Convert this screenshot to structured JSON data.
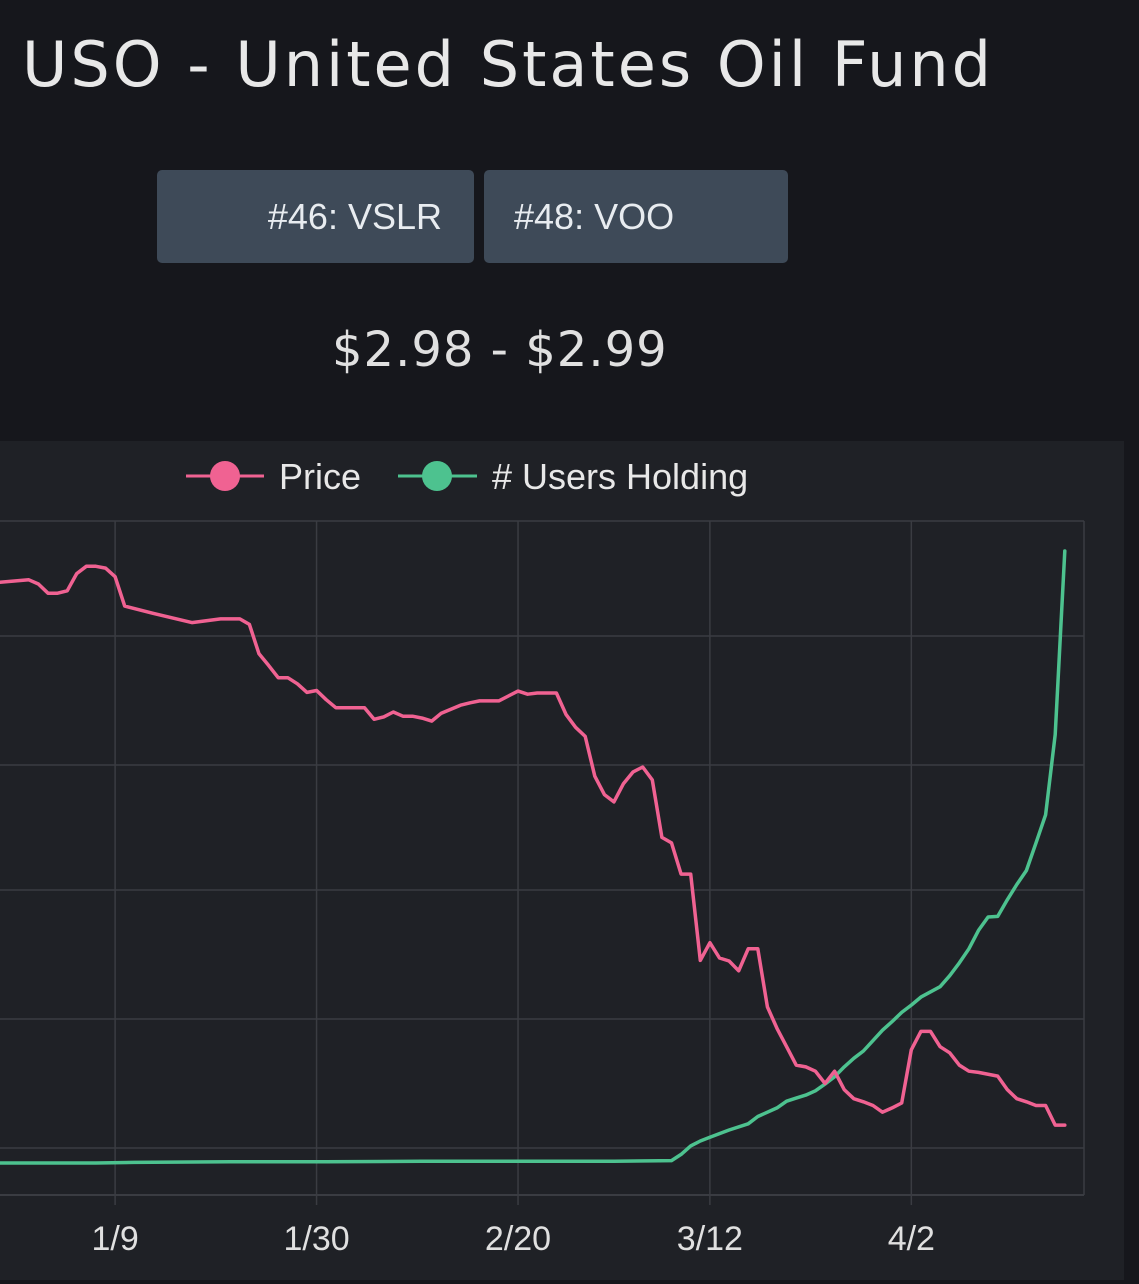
{
  "header": {
    "title": "USO - United States Oil Fund"
  },
  "nav": {
    "prev_label": "#46: VSLR",
    "next_label": "#48: VOO"
  },
  "price_range": "$2.98 - $2.99",
  "colors": {
    "background": "#16171c",
    "chart_background": "#1f2126",
    "grid": "#3a3c42",
    "price_series": "#f06292",
    "users_series": "#4dc28f",
    "button": "#3e4a58"
  },
  "chart_data": {
    "type": "line",
    "x_ticks": [
      "1/9",
      "1/30",
      "2/20",
      "3/12",
      "4/2"
    ],
    "x_tick_days": [
      8,
      29,
      50,
      70,
      91
    ],
    "xlim": [
      -4,
      109
    ],
    "grid": true,
    "legend_position": "top-center",
    "series": [
      {
        "name": "Price",
        "axis": "left",
        "ylim": [
          0,
          1
        ],
        "points": [
          [
            -4,
            0.949
          ],
          [
            -1,
            0.953
          ],
          [
            0,
            0.946
          ],
          [
            1,
            0.931
          ],
          [
            2,
            0.931
          ],
          [
            3,
            0.935
          ],
          [
            4,
            0.963
          ],
          [
            5,
            0.975
          ],
          [
            6,
            0.975
          ],
          [
            7,
            0.972
          ],
          [
            8,
            0.958
          ],
          [
            9,
            0.91
          ],
          [
            12,
            0.898
          ],
          [
            16,
            0.883
          ],
          [
            19,
            0.889
          ],
          [
            21,
            0.889
          ],
          [
            22,
            0.88
          ],
          [
            23,
            0.832
          ],
          [
            24,
            0.813
          ],
          [
            25,
            0.793
          ],
          [
            26,
            0.793
          ],
          [
            27,
            0.783
          ],
          [
            28,
            0.769
          ],
          [
            29,
            0.772
          ],
          [
            30,
            0.757
          ],
          [
            31,
            0.744
          ],
          [
            34,
            0.744
          ],
          [
            35,
            0.725
          ],
          [
            36,
            0.729
          ],
          [
            37,
            0.737
          ],
          [
            38,
            0.73
          ],
          [
            39,
            0.73
          ],
          [
            40,
            0.727
          ],
          [
            41,
            0.722
          ],
          [
            42,
            0.735
          ],
          [
            44,
            0.748
          ],
          [
            45,
            0.752
          ],
          [
            46,
            0.755
          ],
          [
            48,
            0.755
          ],
          [
            49,
            0.763
          ],
          [
            50,
            0.771
          ],
          [
            51,
            0.766
          ],
          [
            52,
            0.768
          ],
          [
            54,
            0.768
          ],
          [
            55,
            0.733
          ],
          [
            56,
            0.712
          ],
          [
            57,
            0.697
          ],
          [
            58,
            0.632
          ],
          [
            59,
            0.602
          ],
          [
            60,
            0.59
          ],
          [
            61,
            0.62
          ],
          [
            62,
            0.639
          ],
          [
            63,
            0.647
          ],
          [
            64,
            0.626
          ],
          [
            65,
            0.532
          ],
          [
            66,
            0.523
          ],
          [
            67,
            0.472
          ],
          [
            68,
            0.472
          ],
          [
            69,
            0.331
          ],
          [
            70,
            0.36
          ],
          [
            71,
            0.335
          ],
          [
            72,
            0.33
          ],
          [
            73,
            0.314
          ],
          [
            74,
            0.35
          ],
          [
            75,
            0.35
          ],
          [
            76,
            0.255
          ],
          [
            77,
            0.22
          ],
          [
            78,
            0.19
          ],
          [
            79,
            0.16
          ],
          [
            80,
            0.157
          ],
          [
            81,
            0.15
          ],
          [
            82,
            0.13
          ],
          [
            83,
            0.15
          ],
          [
            84,
            0.12
          ],
          [
            85,
            0.105
          ],
          [
            86,
            0.1
          ],
          [
            87,
            0.094
          ],
          [
            88,
            0.083
          ],
          [
            89,
            0.09
          ],
          [
            90,
            0.098
          ],
          [
            91,
            0.185
          ],
          [
            92,
            0.215
          ],
          [
            93,
            0.215
          ],
          [
            94,
            0.19
          ],
          [
            95,
            0.18
          ],
          [
            96,
            0.16
          ],
          [
            97,
            0.15
          ],
          [
            98,
            0.148
          ],
          [
            100,
            0.142
          ],
          [
            101,
            0.12
          ],
          [
            102,
            0.105
          ],
          [
            103,
            0.1
          ],
          [
            104,
            0.094
          ],
          [
            105,
            0.094
          ],
          [
            106,
            0.062
          ],
          [
            107,
            0.062
          ]
        ]
      },
      {
        "name": "# Users Holding",
        "axis": "right",
        "ylim": [
          0,
          1
        ],
        "points": [
          [
            -4,
            0.0
          ],
          [
            6,
            0.0
          ],
          [
            10,
            0.001
          ],
          [
            20,
            0.002
          ],
          [
            30,
            0.002
          ],
          [
            40,
            0.003
          ],
          [
            50,
            0.003
          ],
          [
            60,
            0.003
          ],
          [
            66,
            0.004
          ],
          [
            67,
            0.014
          ],
          [
            68,
            0.028
          ],
          [
            69,
            0.036
          ],
          [
            70,
            0.042
          ],
          [
            71,
            0.048
          ],
          [
            72,
            0.054
          ],
          [
            74,
            0.064
          ],
          [
            75,
            0.076
          ],
          [
            77,
            0.09
          ],
          [
            78,
            0.101
          ],
          [
            79,
            0.106
          ],
          [
            80,
            0.111
          ],
          [
            81,
            0.118
          ],
          [
            82,
            0.129
          ],
          [
            83,
            0.141
          ],
          [
            84,
            0.157
          ],
          [
            85,
            0.171
          ],
          [
            86,
            0.183
          ],
          [
            87,
            0.2
          ],
          [
            88,
            0.217
          ],
          [
            89,
            0.231
          ],
          [
            90,
            0.246
          ],
          [
            91,
            0.258
          ],
          [
            92,
            0.271
          ],
          [
            94,
            0.288
          ],
          [
            95,
            0.306
          ],
          [
            96,
            0.327
          ],
          [
            97,
            0.35
          ],
          [
            98,
            0.38
          ],
          [
            99,
            0.402
          ],
          [
            100,
            0.403
          ],
          [
            101,
            0.43
          ],
          [
            102,
            0.455
          ],
          [
            103,
            0.478
          ],
          [
            104,
            0.523
          ],
          [
            105,
            0.569
          ],
          [
            106,
            0.7
          ],
          [
            107,
            1.0
          ]
        ]
      }
    ]
  }
}
